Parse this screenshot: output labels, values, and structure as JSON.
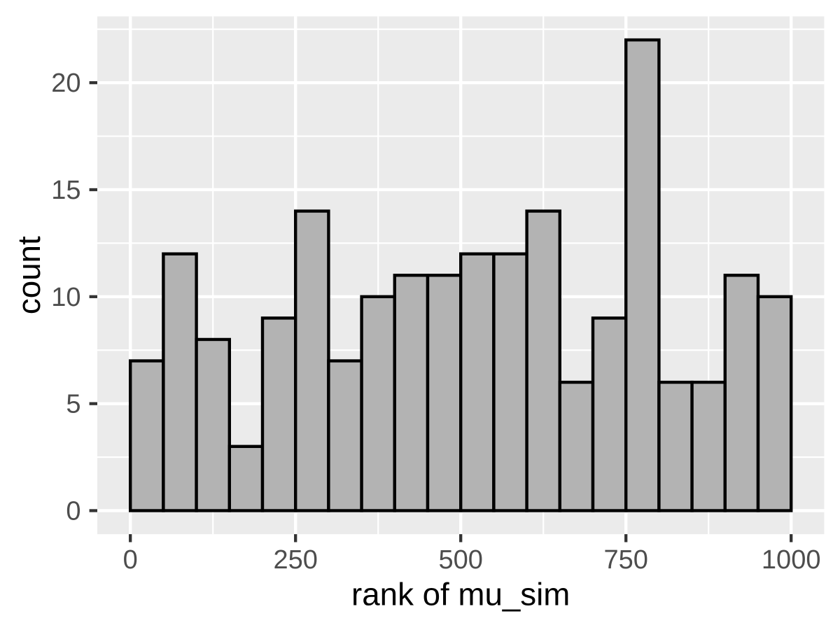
{
  "chart_data": {
    "type": "bar",
    "subtype": "histogram",
    "title": "",
    "xlabel": "rank of mu_sim",
    "ylabel": "count",
    "bin_start": 0,
    "bin_width": 50,
    "counts": [
      7,
      12,
      8,
      3,
      9,
      14,
      7,
      10,
      11,
      11,
      12,
      12,
      14,
      6,
      9,
      22,
      6,
      6,
      11,
      10
    ],
    "x_major_ticks": [
      0,
      250,
      500,
      750,
      1000
    ],
    "x_tick_labels": [
      "0",
      "250",
      "500",
      "750",
      "1000"
    ],
    "x_minor_ticks": [
      125,
      375,
      625,
      875
    ],
    "y_major_ticks": [
      0,
      5,
      10,
      15,
      20
    ],
    "y_tick_labels": [
      "0",
      "5",
      "10",
      "15",
      "20"
    ],
    "y_minor_ticks": [
      2.5,
      7.5,
      12.5,
      17.5,
      22.5
    ],
    "xlim": [
      -50,
      1050
    ],
    "ylim": [
      -1.1,
      23.1
    ],
    "grid": true,
    "legend": "none",
    "colors": {
      "bar_fill": "#B3B3B3",
      "bar_stroke": "#000000",
      "panel_background": "#EBEBEB",
      "grid_line": "#FFFFFF",
      "tick_mark": "#333333",
      "tick_label": "#4D4D4D",
      "axis_title": "#000000",
      "page_background": "#FFFFFF"
    }
  }
}
